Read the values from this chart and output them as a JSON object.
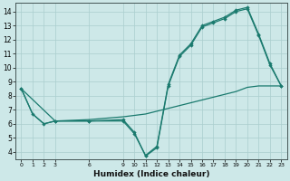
{
  "xlabel": "Humidex (Indice chaleur)",
  "bg_color": "#cde8e8",
  "line_color": "#1a7a6e",
  "grid_color": "#aacece",
  "ylim": [
    3.5,
    14.6
  ],
  "xlim": [
    -0.5,
    23.5
  ],
  "yticks": [
    4,
    5,
    6,
    7,
    8,
    9,
    10,
    11,
    12,
    13,
    14
  ],
  "xticks": [
    0,
    1,
    2,
    3,
    6,
    9,
    10,
    11,
    12,
    13,
    14,
    15,
    16,
    17,
    18,
    19,
    20,
    21,
    22,
    23
  ],
  "s1_x": [
    0,
    1,
    2,
    3,
    6,
    9,
    10,
    11,
    12,
    13,
    14,
    15,
    16,
    17,
    18,
    19,
    20,
    21,
    22,
    23
  ],
  "s1_y": [
    8.5,
    6.7,
    6.0,
    6.2,
    6.2,
    6.3,
    5.4,
    3.7,
    4.3,
    8.7,
    10.8,
    11.6,
    12.9,
    13.2,
    13.5,
    14.0,
    14.2,
    12.3,
    10.2,
    8.7
  ],
  "s2_x": [
    0,
    3,
    6,
    9,
    10,
    11,
    12,
    13,
    14,
    15,
    16,
    17,
    18,
    19,
    20,
    21,
    22,
    23
  ],
  "s2_y": [
    8.5,
    6.2,
    6.2,
    6.2,
    5.3,
    3.75,
    4.4,
    8.8,
    10.9,
    11.7,
    13.0,
    13.3,
    13.6,
    14.1,
    14.3,
    12.4,
    10.3,
    8.7
  ],
  "s3_x": [
    0,
    1,
    2,
    3,
    6,
    9,
    10,
    11,
    12,
    13,
    14,
    15,
    16,
    17,
    18,
    19,
    20,
    21,
    22,
    23
  ],
  "s3_y": [
    8.5,
    6.7,
    6.0,
    6.2,
    6.3,
    6.5,
    6.6,
    6.7,
    6.9,
    7.1,
    7.3,
    7.5,
    7.7,
    7.9,
    8.1,
    8.3,
    8.6,
    8.7,
    8.7,
    8.7
  ]
}
